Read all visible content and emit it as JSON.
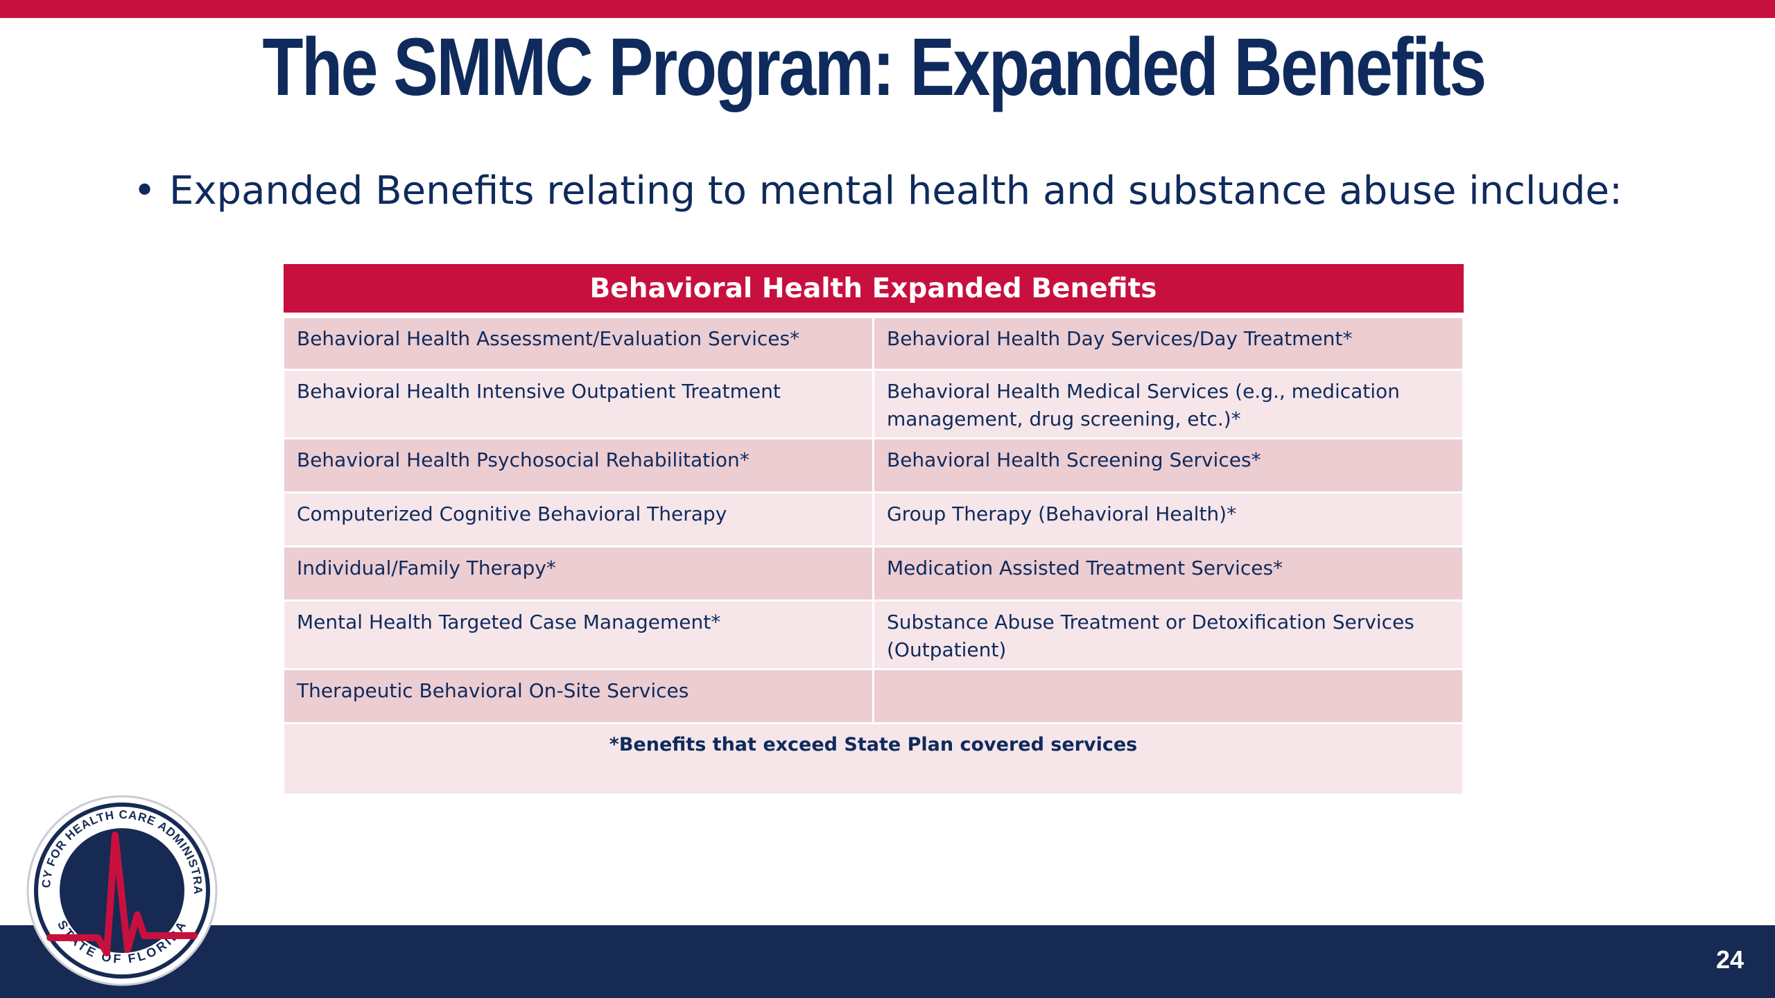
{
  "slide": {
    "title": "The SMMC Program: Expanded Benefits",
    "bullet": "Expanded Benefits relating to mental health and substance abuse include:",
    "page_number": "24"
  },
  "table": {
    "header": "Behavioral Health Expanded Benefits",
    "rows": [
      [
        "Behavioral Health Assessment/Evaluation Services*",
        "Behavioral Health Day Services/Day Treatment*"
      ],
      [
        "Behavioral Health Intensive Outpatient Treatment",
        "Behavioral Health Medical Services (e.g., medication management, drug screening, etc.)*"
      ],
      [
        "Behavioral Health Psychosocial Rehabilitation*",
        "Behavioral Health Screening Services*"
      ],
      [
        "Computerized Cognitive Behavioral Therapy",
        "Group Therapy (Behavioral Health)*"
      ],
      [
        "Individual/Family Therapy*",
        "Medication Assisted Treatment Services*"
      ],
      [
        "Mental Health Targeted Case Management*",
        "Substance Abuse Treatment or Detoxification Services (Outpatient)"
      ],
      [
        "Therapeutic Behavioral On-Site Services",
        ""
      ]
    ],
    "footnote": "*Benefits that exceed State Plan covered services"
  },
  "logo": {
    "text_top": "AGENCY FOR HEALTH CARE ADMINISTRATION",
    "text_bottom": "STATE OF FLORIDA"
  },
  "colors": {
    "accent_red": "#c8103e",
    "navy": "#0f2a5c",
    "footer_navy": "#162a53"
  }
}
